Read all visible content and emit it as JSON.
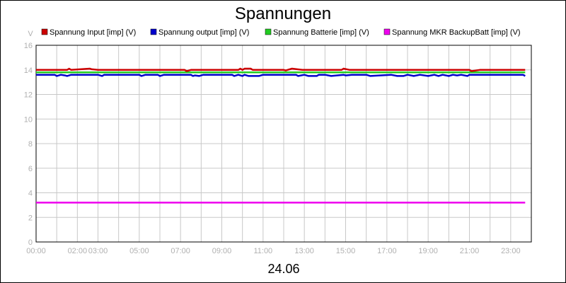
{
  "chart_data": {
    "type": "line",
    "title": "Spannungen",
    "ylabel": "V",
    "xlabel": "24.06",
    "ylim": [
      0,
      16
    ],
    "xlim": [
      0,
      24
    ],
    "yticks": [
      0,
      2,
      4,
      6,
      8,
      10,
      12,
      14,
      16
    ],
    "xtick_labels": [
      {
        "x": 0,
        "label": "00:00"
      },
      {
        "x": 2,
        "label": "02:00"
      },
      {
        "x": 3,
        "label": "03:00"
      },
      {
        "x": 5,
        "label": "05:00"
      },
      {
        "x": 7,
        "label": "07:00"
      },
      {
        "x": 9,
        "label": "09:00"
      },
      {
        "x": 11,
        "label": "11:00"
      },
      {
        "x": 13,
        "label": "13:00"
      },
      {
        "x": 15,
        "label": "15:00"
      },
      {
        "x": 17,
        "label": "17:00"
      },
      {
        "x": 19,
        "label": "19:00"
      },
      {
        "x": 21,
        "label": "21:00"
      },
      {
        "x": 23,
        "label": "23:00"
      }
    ],
    "grid": true,
    "legend_position": "top",
    "series": [
      {
        "name": "Spannung Input [imp] (V)",
        "color": "#cc0000",
        "x": [
          0,
          1.5,
          1.6,
          1.7,
          2.6,
          2.7,
          3.0,
          7.2,
          7.3,
          7.5,
          9.8,
          9.9,
          10.0,
          10.1,
          10.4,
          10.5,
          12.0,
          12.1,
          12.4,
          12.9,
          14.8,
          14.9,
          15.2,
          15.4,
          21.0,
          21.1,
          21.5,
          23.7
        ],
        "y": [
          14.0,
          14.0,
          14.1,
          14.0,
          14.1,
          14.05,
          14.0,
          14.0,
          13.9,
          14.0,
          14.0,
          14.1,
          14.0,
          14.1,
          14.1,
          14.0,
          14.0,
          13.95,
          14.1,
          14.0,
          14.0,
          14.1,
          14.0,
          14.0,
          14.0,
          13.9,
          14.0,
          14.0
        ]
      },
      {
        "name": "Spannung output [imp] (V)",
        "color": "#0000cc",
        "x": [
          0,
          0.9,
          1.0,
          1.2,
          1.4,
          1.5,
          1.7,
          3.0,
          3.2,
          3.3,
          5.0,
          5.1,
          5.3,
          5.9,
          6.0,
          6.2,
          7.5,
          7.6,
          7.7,
          7.9,
          8.1,
          9.5,
          9.6,
          9.8,
          10.0,
          10.1,
          10.3,
          10.5,
          10.8,
          11.0,
          12.6,
          12.7,
          13.0,
          13.2,
          13.6,
          13.7,
          14.0,
          14.3,
          14.9,
          15.0,
          15.3,
          16.0,
          16.2,
          17.2,
          17.5,
          17.8,
          18.0,
          18.3,
          18.6,
          19.0,
          19.3,
          19.5,
          19.7,
          20.0,
          20.2,
          20.4,
          20.6,
          20.9,
          21.0,
          21.1,
          23.6,
          23.7
        ],
        "y": [
          13.6,
          13.6,
          13.5,
          13.6,
          13.55,
          13.5,
          13.6,
          13.6,
          13.5,
          13.6,
          13.6,
          13.5,
          13.6,
          13.6,
          13.5,
          13.6,
          13.6,
          13.5,
          13.55,
          13.5,
          13.6,
          13.6,
          13.5,
          13.6,
          13.5,
          13.6,
          13.5,
          13.5,
          13.5,
          13.6,
          13.6,
          13.5,
          13.6,
          13.5,
          13.5,
          13.6,
          13.6,
          13.5,
          13.6,
          13.55,
          13.6,
          13.6,
          13.5,
          13.6,
          13.5,
          13.5,
          13.6,
          13.5,
          13.6,
          13.5,
          13.6,
          13.5,
          13.6,
          13.5,
          13.6,
          13.55,
          13.6,
          13.5,
          13.6,
          13.6,
          13.6,
          13.5
        ]
      },
      {
        "name": "Spannung Batterie [imp] (V)",
        "color": "#22cc22",
        "x": [
          0,
          23.7
        ],
        "y": [
          13.8,
          13.8
        ]
      },
      {
        "name": "Spannung MKR BackupBatt [imp] (V)",
        "color": "#ee00ee",
        "x": [
          0,
          23.7
        ],
        "y": [
          3.2,
          3.2
        ]
      }
    ]
  }
}
